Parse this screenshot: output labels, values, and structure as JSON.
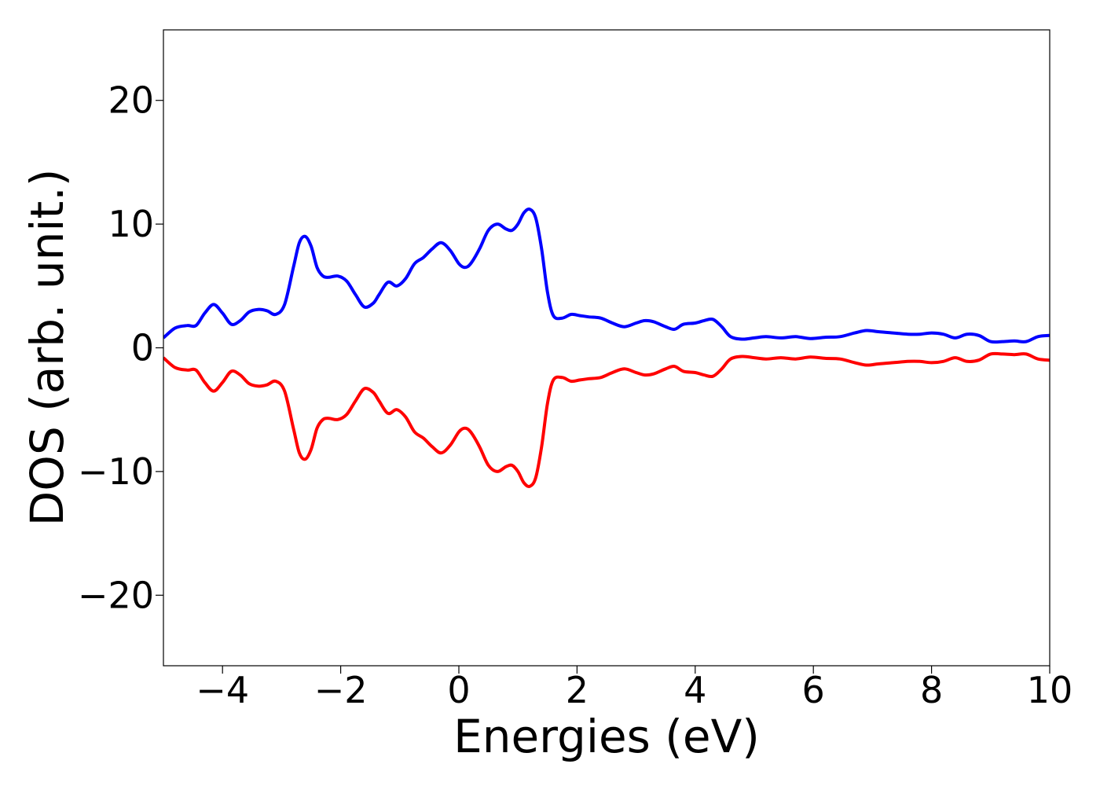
{
  "chart_data": {
    "type": "line",
    "title": "",
    "xlabel": "Energies (eV)",
    "ylabel": "DOS (arb. unit.)",
    "xlim": [
      -5,
      10
    ],
    "ylim": [
      -25.7,
      25.7
    ],
    "xticks": [
      -4,
      -2,
      0,
      2,
      4,
      6,
      8,
      10
    ],
    "xtick_labels": [
      "−4",
      "−2",
      "0",
      "2",
      "4",
      "6",
      "8",
      "10"
    ],
    "yticks": [
      20,
      10,
      0,
      -10,
      -20
    ],
    "ytick_labels": [
      "20",
      "10",
      "0",
      "−10",
      "−20"
    ],
    "grid": false,
    "legend": "none",
    "series": [
      {
        "color": "#0000ff",
        "x": [
          -5.0,
          -4.8,
          -4.6,
          -4.45,
          -4.3,
          -4.15,
          -4.0,
          -3.85,
          -3.7,
          -3.55,
          -3.4,
          -3.25,
          -3.1,
          -2.95,
          -2.8,
          -2.7,
          -2.6,
          -2.5,
          -2.4,
          -2.3,
          -2.2,
          -2.05,
          -1.9,
          -1.75,
          -1.6,
          -1.45,
          -1.35,
          -1.2,
          -1.05,
          -0.9,
          -0.75,
          -0.6,
          -0.45,
          -0.3,
          -0.15,
          0.0,
          0.1,
          0.2,
          0.35,
          0.5,
          0.65,
          0.8,
          0.9,
          1.0,
          1.1,
          1.2,
          1.3,
          1.4,
          1.5,
          1.6,
          1.75,
          1.9,
          2.05,
          2.2,
          2.4,
          2.6,
          2.8,
          3.0,
          3.15,
          3.3,
          3.5,
          3.65,
          3.8,
          4.0,
          4.15,
          4.3,
          4.45,
          4.6,
          4.8,
          5.0,
          5.2,
          5.45,
          5.7,
          5.95,
          6.2,
          6.45,
          6.7,
          6.9,
          7.1,
          7.35,
          7.6,
          7.8,
          8.0,
          8.2,
          8.4,
          8.6,
          8.8,
          9.0,
          9.2,
          9.4,
          9.6,
          9.8,
          10.0
        ],
        "y": [
          0.8,
          1.6,
          1.8,
          1.8,
          2.8,
          3.5,
          2.8,
          1.9,
          2.2,
          2.9,
          3.1,
          3.0,
          2.7,
          3.5,
          6.5,
          8.5,
          9.0,
          8.2,
          6.5,
          5.8,
          5.7,
          5.8,
          5.4,
          4.3,
          3.3,
          3.6,
          4.3,
          5.3,
          5.0,
          5.6,
          6.8,
          7.3,
          8.0,
          8.5,
          7.9,
          6.8,
          6.5,
          6.8,
          8.0,
          9.5,
          10.0,
          9.6,
          9.5,
          10.0,
          10.9,
          11.2,
          10.5,
          8.0,
          4.5,
          2.6,
          2.4,
          2.7,
          2.6,
          2.5,
          2.4,
          2.0,
          1.7,
          2.0,
          2.2,
          2.1,
          1.7,
          1.5,
          1.9,
          2.0,
          2.2,
          2.3,
          1.7,
          0.9,
          0.7,
          0.8,
          0.9,
          0.8,
          0.9,
          0.75,
          0.85,
          0.9,
          1.2,
          1.4,
          1.3,
          1.2,
          1.1,
          1.1,
          1.2,
          1.1,
          0.8,
          1.1,
          1.0,
          0.5,
          0.5,
          0.55,
          0.5,
          0.9,
          1.0
        ]
      },
      {
        "color": "#ff0000",
        "x": [
          -5.0,
          -4.8,
          -4.6,
          -4.45,
          -4.3,
          -4.15,
          -4.0,
          -3.85,
          -3.7,
          -3.55,
          -3.4,
          -3.25,
          -3.1,
          -2.95,
          -2.8,
          -2.7,
          -2.6,
          -2.5,
          -2.4,
          -2.3,
          -2.2,
          -2.05,
          -1.9,
          -1.75,
          -1.6,
          -1.45,
          -1.35,
          -1.2,
          -1.05,
          -0.9,
          -0.75,
          -0.6,
          -0.45,
          -0.3,
          -0.15,
          0.0,
          0.1,
          0.2,
          0.35,
          0.5,
          0.65,
          0.8,
          0.9,
          1.0,
          1.1,
          1.2,
          1.3,
          1.4,
          1.5,
          1.6,
          1.75,
          1.9,
          2.05,
          2.2,
          2.4,
          2.6,
          2.8,
          3.0,
          3.15,
          3.3,
          3.5,
          3.65,
          3.8,
          4.0,
          4.15,
          4.3,
          4.45,
          4.6,
          4.8,
          5.0,
          5.2,
          5.45,
          5.7,
          5.95,
          6.2,
          6.45,
          6.7,
          6.9,
          7.1,
          7.35,
          7.6,
          7.8,
          8.0,
          8.2,
          8.4,
          8.6,
          8.8,
          9.0,
          9.2,
          9.4,
          9.6,
          9.8,
          10.0
        ],
        "y": [
          -0.8,
          -1.6,
          -1.8,
          -1.8,
          -2.8,
          -3.5,
          -2.8,
          -1.9,
          -2.2,
          -2.9,
          -3.1,
          -3.0,
          -2.7,
          -3.5,
          -6.5,
          -8.5,
          -9.0,
          -8.2,
          -6.5,
          -5.8,
          -5.7,
          -5.8,
          -5.4,
          -4.3,
          -3.3,
          -3.6,
          -4.3,
          -5.3,
          -5.0,
          -5.6,
          -6.8,
          -7.3,
          -8.0,
          -8.5,
          -7.9,
          -6.8,
          -6.5,
          -6.8,
          -8.0,
          -9.5,
          -10.0,
          -9.6,
          -9.5,
          -10.0,
          -10.9,
          -11.2,
          -10.5,
          -8.0,
          -4.5,
          -2.6,
          -2.4,
          -2.7,
          -2.6,
          -2.5,
          -2.4,
          -2.0,
          -1.7,
          -2.0,
          -2.2,
          -2.1,
          -1.7,
          -1.5,
          -1.9,
          -2.0,
          -2.2,
          -2.3,
          -1.7,
          -0.9,
          -0.7,
          -0.8,
          -0.9,
          -0.8,
          -0.9,
          -0.75,
          -0.85,
          -0.9,
          -1.2,
          -1.4,
          -1.3,
          -1.2,
          -1.1,
          -1.1,
          -1.2,
          -1.1,
          -0.8,
          -1.1,
          -1.0,
          -0.5,
          -0.5,
          -0.55,
          -0.5,
          -0.9,
          -1.0
        ]
      }
    ]
  }
}
